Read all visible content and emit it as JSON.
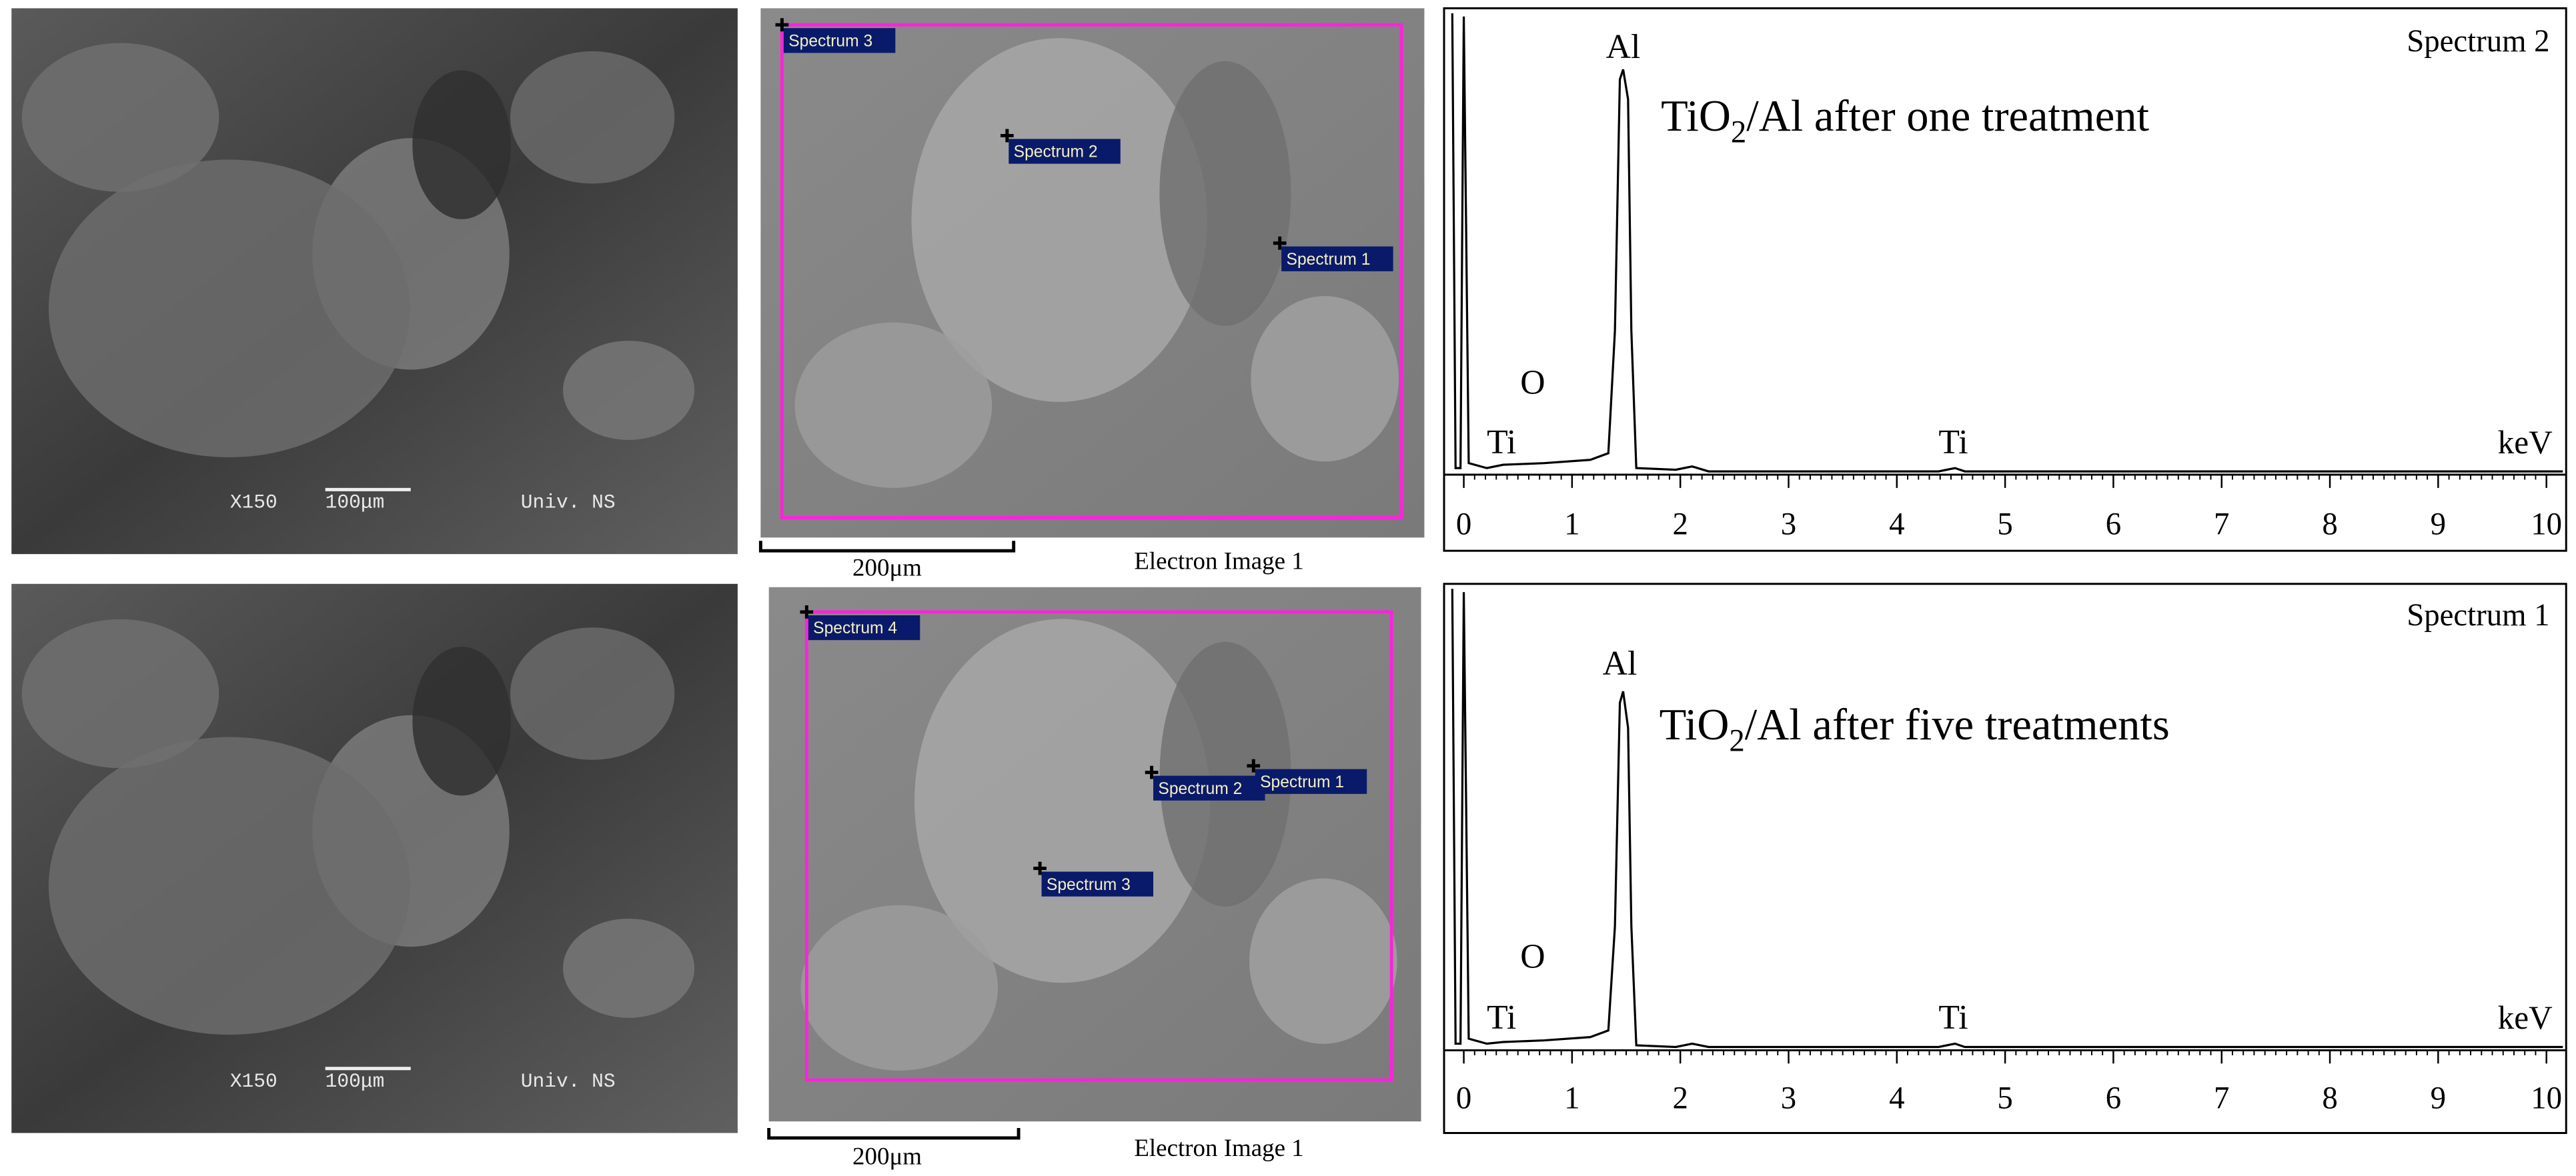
{
  "panels": [
    {
      "sem": {
        "magnification": "X150",
        "scale": "100μm",
        "lab": "Univ. NS"
      },
      "electron_image": {
        "spectra": [
          "Spectrum 3",
          "Spectrum 2",
          "Spectrum 1"
        ],
        "scale": "200μm",
        "caption": "Electron Image 1"
      },
      "eds": {
        "spectrum": "Spectrum 2",
        "title_parts": [
          "TiO",
          "2",
          "/Al after one treatment"
        ],
        "peaks": [
          "Al",
          "O",
          "Ti",
          "Ti"
        ],
        "unit": "keV",
        "xticks": [
          0,
          1,
          2,
          3,
          4,
          5,
          6,
          7,
          8,
          9,
          10
        ]
      }
    },
    {
      "sem": {
        "magnification": "X150",
        "scale": "100μm",
        "lab": "Univ. NS"
      },
      "electron_image": {
        "spectra": [
          "Spectrum 4",
          "Spectrum 2",
          "Spectrum 1",
          "Spectrum 3"
        ],
        "scale": "200μm",
        "caption": "Electron Image 1"
      },
      "eds": {
        "spectrum": "Spectrum 1",
        "title_parts": [
          "TiO",
          "2",
          "/Al after five treatments"
        ],
        "peaks": [
          "Al",
          "O",
          "Ti",
          "Ti"
        ],
        "unit": "keV",
        "xticks": [
          0,
          1,
          2,
          3,
          4,
          5,
          6,
          7,
          8,
          9,
          10
        ]
      }
    }
  ]
}
